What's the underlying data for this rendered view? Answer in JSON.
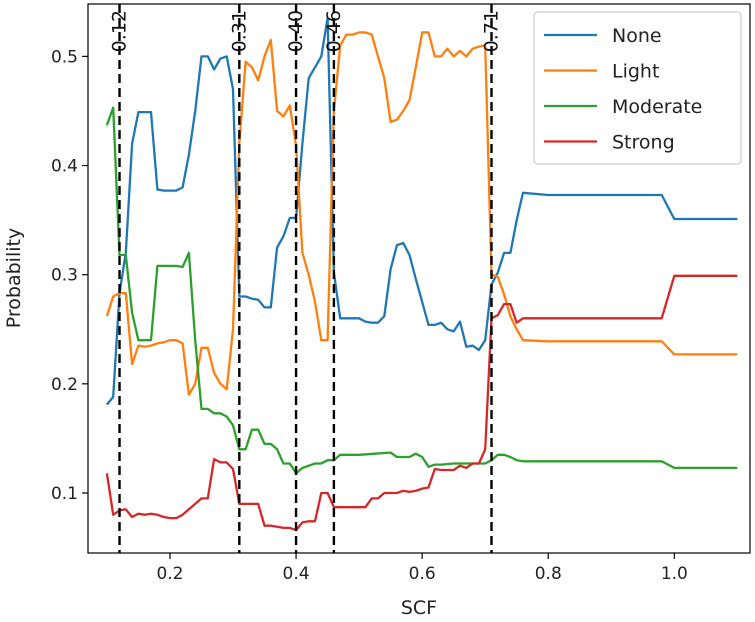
{
  "chart_data": {
    "type": "line",
    "title": "",
    "xlabel": "SCF",
    "ylabel": "Probability",
    "xlim": [
      0.07,
      1.12
    ],
    "ylim": [
      0.045,
      0.548
    ],
    "xticks": [
      0.2,
      0.4,
      0.6,
      0.8,
      1.0
    ],
    "xtick_labels": [
      "0.2",
      "0.4",
      "0.6",
      "0.8",
      "1.0"
    ],
    "yticks": [
      0.1,
      0.2,
      0.3,
      0.4,
      0.5
    ],
    "ytick_labels": [
      "0.1",
      "0.2",
      "0.3",
      "0.4",
      "0.5"
    ],
    "thresholds": [
      {
        "x": 0.12,
        "label": "0.12"
      },
      {
        "x": 0.31,
        "label": "0.31"
      },
      {
        "x": 0.4,
        "label": "0.40"
      },
      {
        "x": 0.46,
        "label": "0.46"
      },
      {
        "x": 0.71,
        "label": "0.71"
      }
    ],
    "legend_position": "top-right",
    "series": [
      {
        "name": "None",
        "color": "#1f77b4",
        "points": [
          [
            0.1,
            0.181
          ],
          [
            0.11,
            0.188
          ],
          [
            0.12,
            0.283
          ],
          [
            0.13,
            0.32
          ],
          [
            0.14,
            0.42
          ],
          [
            0.15,
            0.449
          ],
          [
            0.16,
            0.449
          ],
          [
            0.17,
            0.449
          ],
          [
            0.18,
            0.378
          ],
          [
            0.19,
            0.377
          ],
          [
            0.2,
            0.377
          ],
          [
            0.21,
            0.377
          ],
          [
            0.22,
            0.38
          ],
          [
            0.23,
            0.41
          ],
          [
            0.24,
            0.45
          ],
          [
            0.25,
            0.5
          ],
          [
            0.26,
            0.5
          ],
          [
            0.27,
            0.488
          ],
          [
            0.28,
            0.498
          ],
          [
            0.29,
            0.5
          ],
          [
            0.3,
            0.47
          ],
          [
            0.31,
            0.28
          ],
          [
            0.32,
            0.28
          ],
          [
            0.33,
            0.278
          ],
          [
            0.34,
            0.277
          ],
          [
            0.35,
            0.27
          ],
          [
            0.36,
            0.27
          ],
          [
            0.37,
            0.325
          ],
          [
            0.38,
            0.335
          ],
          [
            0.39,
            0.352
          ],
          [
            0.4,
            0.352
          ],
          [
            0.41,
            0.42
          ],
          [
            0.42,
            0.48
          ],
          [
            0.43,
            0.49
          ],
          [
            0.44,
            0.5
          ],
          [
            0.45,
            0.535
          ],
          [
            0.46,
            0.302
          ],
          [
            0.47,
            0.26
          ],
          [
            0.48,
            0.26
          ],
          [
            0.49,
            0.26
          ],
          [
            0.5,
            0.26
          ],
          [
            0.51,
            0.257
          ],
          [
            0.52,
            0.256
          ],
          [
            0.53,
            0.256
          ],
          [
            0.54,
            0.262
          ],
          [
            0.55,
            0.305
          ],
          [
            0.56,
            0.327
          ],
          [
            0.57,
            0.329
          ],
          [
            0.58,
            0.318
          ],
          [
            0.59,
            0.296
          ],
          [
            0.6,
            0.275
          ],
          [
            0.61,
            0.254
          ],
          [
            0.62,
            0.254
          ],
          [
            0.63,
            0.256
          ],
          [
            0.64,
            0.25
          ],
          [
            0.65,
            0.248
          ],
          [
            0.66,
            0.257
          ],
          [
            0.67,
            0.234
          ],
          [
            0.68,
            0.235
          ],
          [
            0.69,
            0.231
          ],
          [
            0.7,
            0.24
          ],
          [
            0.71,
            0.291
          ],
          [
            0.72,
            0.302
          ],
          [
            0.73,
            0.32
          ],
          [
            0.74,
            0.32
          ],
          [
            0.75,
            0.35
          ],
          [
            0.76,
            0.375
          ],
          [
            0.8,
            0.373
          ],
          [
            0.9,
            0.373
          ],
          [
            0.98,
            0.373
          ],
          [
            1.0,
            0.351
          ],
          [
            1.1,
            0.351
          ]
        ]
      },
      {
        "name": "Light",
        "color": "#ff7f0e",
        "points": [
          [
            0.1,
            0.262
          ],
          [
            0.11,
            0.28
          ],
          [
            0.12,
            0.283
          ],
          [
            0.13,
            0.283
          ],
          [
            0.14,
            0.218
          ],
          [
            0.15,
            0.235
          ],
          [
            0.16,
            0.234
          ],
          [
            0.17,
            0.235
          ],
          [
            0.18,
            0.237
          ],
          [
            0.19,
            0.238
          ],
          [
            0.2,
            0.24
          ],
          [
            0.21,
            0.24
          ],
          [
            0.22,
            0.237
          ],
          [
            0.23,
            0.19
          ],
          [
            0.24,
            0.2
          ],
          [
            0.25,
            0.233
          ],
          [
            0.26,
            0.233
          ],
          [
            0.27,
            0.21
          ],
          [
            0.28,
            0.2
          ],
          [
            0.29,
            0.195
          ],
          [
            0.3,
            0.25
          ],
          [
            0.31,
            0.42
          ],
          [
            0.32,
            0.495
          ],
          [
            0.33,
            0.49
          ],
          [
            0.34,
            0.478
          ],
          [
            0.35,
            0.5
          ],
          [
            0.36,
            0.515
          ],
          [
            0.37,
            0.45
          ],
          [
            0.38,
            0.445
          ],
          [
            0.39,
            0.455
          ],
          [
            0.4,
            0.418
          ],
          [
            0.41,
            0.32
          ],
          [
            0.42,
            0.3
          ],
          [
            0.43,
            0.275
          ],
          [
            0.44,
            0.24
          ],
          [
            0.45,
            0.24
          ],
          [
            0.46,
            0.45
          ],
          [
            0.47,
            0.51
          ],
          [
            0.48,
            0.52
          ],
          [
            0.49,
            0.52
          ],
          [
            0.5,
            0.522
          ],
          [
            0.51,
            0.522
          ],
          [
            0.52,
            0.52
          ],
          [
            0.53,
            0.5
          ],
          [
            0.54,
            0.48
          ],
          [
            0.55,
            0.44
          ],
          [
            0.56,
            0.442
          ],
          [
            0.57,
            0.45
          ],
          [
            0.58,
            0.46
          ],
          [
            0.59,
            0.49
          ],
          [
            0.6,
            0.522
          ],
          [
            0.61,
            0.522
          ],
          [
            0.62,
            0.5
          ],
          [
            0.63,
            0.5
          ],
          [
            0.64,
            0.507
          ],
          [
            0.65,
            0.5
          ],
          [
            0.66,
            0.505
          ],
          [
            0.67,
            0.5
          ],
          [
            0.68,
            0.507
          ],
          [
            0.69,
            0.509
          ],
          [
            0.7,
            0.51
          ],
          [
            0.71,
            0.3
          ],
          [
            0.72,
            0.298
          ],
          [
            0.73,
            0.282
          ],
          [
            0.74,
            0.262
          ],
          [
            0.75,
            0.25
          ],
          [
            0.76,
            0.24
          ],
          [
            0.8,
            0.239
          ],
          [
            0.9,
            0.239
          ],
          [
            0.98,
            0.239
          ],
          [
            1.0,
            0.227
          ],
          [
            1.1,
            0.227
          ]
        ]
      },
      {
        "name": "Moderate",
        "color": "#2ca02c",
        "points": [
          [
            0.1,
            0.437
          ],
          [
            0.11,
            0.453
          ],
          [
            0.12,
            0.318
          ],
          [
            0.13,
            0.318
          ],
          [
            0.14,
            0.265
          ],
          [
            0.15,
            0.24
          ],
          [
            0.16,
            0.24
          ],
          [
            0.17,
            0.24
          ],
          [
            0.18,
            0.308
          ],
          [
            0.19,
            0.308
          ],
          [
            0.2,
            0.308
          ],
          [
            0.21,
            0.308
          ],
          [
            0.22,
            0.307
          ],
          [
            0.23,
            0.32
          ],
          [
            0.24,
            0.24
          ],
          [
            0.25,
            0.177
          ],
          [
            0.26,
            0.177
          ],
          [
            0.27,
            0.173
          ],
          [
            0.28,
            0.173
          ],
          [
            0.29,
            0.17
          ],
          [
            0.3,
            0.162
          ],
          [
            0.31,
            0.14
          ],
          [
            0.32,
            0.14
          ],
          [
            0.33,
            0.158
          ],
          [
            0.34,
            0.158
          ],
          [
            0.35,
            0.145
          ],
          [
            0.36,
            0.145
          ],
          [
            0.37,
            0.14
          ],
          [
            0.38,
            0.127
          ],
          [
            0.39,
            0.127
          ],
          [
            0.4,
            0.118
          ],
          [
            0.41,
            0.123
          ],
          [
            0.42,
            0.125
          ],
          [
            0.43,
            0.127
          ],
          [
            0.44,
            0.127
          ],
          [
            0.45,
            0.13
          ],
          [
            0.46,
            0.13
          ],
          [
            0.47,
            0.135
          ],
          [
            0.5,
            0.135
          ],
          [
            0.55,
            0.137
          ],
          [
            0.56,
            0.133
          ],
          [
            0.57,
            0.133
          ],
          [
            0.58,
            0.133
          ],
          [
            0.59,
            0.136
          ],
          [
            0.6,
            0.133
          ],
          [
            0.61,
            0.124
          ],
          [
            0.62,
            0.126
          ],
          [
            0.63,
            0.126
          ],
          [
            0.65,
            0.127
          ],
          [
            0.7,
            0.127
          ],
          [
            0.71,
            0.13
          ],
          [
            0.72,
            0.135
          ],
          [
            0.73,
            0.135
          ],
          [
            0.74,
            0.133
          ],
          [
            0.75,
            0.13
          ],
          [
            0.76,
            0.129
          ],
          [
            0.8,
            0.129
          ],
          [
            0.9,
            0.129
          ],
          [
            0.98,
            0.129
          ],
          [
            1.0,
            0.123
          ],
          [
            1.1,
            0.123
          ]
        ]
      },
      {
        "name": "Strong",
        "color": "#d62728",
        "points": [
          [
            0.1,
            0.118
          ],
          [
            0.11,
            0.08
          ],
          [
            0.12,
            0.084
          ],
          [
            0.13,
            0.085
          ],
          [
            0.14,
            0.078
          ],
          [
            0.15,
            0.081
          ],
          [
            0.16,
            0.08
          ],
          [
            0.17,
            0.081
          ],
          [
            0.18,
            0.08
          ],
          [
            0.19,
            0.078
          ],
          [
            0.2,
            0.077
          ],
          [
            0.21,
            0.077
          ],
          [
            0.22,
            0.08
          ],
          [
            0.23,
            0.085
          ],
          [
            0.24,
            0.09
          ],
          [
            0.25,
            0.095
          ],
          [
            0.26,
            0.095
          ],
          [
            0.27,
            0.131
          ],
          [
            0.28,
            0.128
          ],
          [
            0.29,
            0.128
          ],
          [
            0.3,
            0.122
          ],
          [
            0.31,
            0.09
          ],
          [
            0.32,
            0.09
          ],
          [
            0.33,
            0.09
          ],
          [
            0.34,
            0.09
          ],
          [
            0.35,
            0.07
          ],
          [
            0.36,
            0.07
          ],
          [
            0.37,
            0.069
          ],
          [
            0.38,
            0.068
          ],
          [
            0.39,
            0.068
          ],
          [
            0.4,
            0.066
          ],
          [
            0.41,
            0.073
          ],
          [
            0.42,
            0.074
          ],
          [
            0.43,
            0.074
          ],
          [
            0.44,
            0.1
          ],
          [
            0.45,
            0.1
          ],
          [
            0.46,
            0.087
          ],
          [
            0.47,
            0.087
          ],
          [
            0.48,
            0.087
          ],
          [
            0.49,
            0.087
          ],
          [
            0.5,
            0.087
          ],
          [
            0.51,
            0.087
          ],
          [
            0.52,
            0.095
          ],
          [
            0.53,
            0.095
          ],
          [
            0.54,
            0.1
          ],
          [
            0.55,
            0.1
          ],
          [
            0.56,
            0.1
          ],
          [
            0.57,
            0.102
          ],
          [
            0.58,
            0.101
          ],
          [
            0.59,
            0.102
          ],
          [
            0.6,
            0.104
          ],
          [
            0.61,
            0.105
          ],
          [
            0.62,
            0.122
          ],
          [
            0.63,
            0.121
          ],
          [
            0.64,
            0.121
          ],
          [
            0.65,
            0.121
          ],
          [
            0.66,
            0.125
          ],
          [
            0.67,
            0.123
          ],
          [
            0.68,
            0.127
          ],
          [
            0.69,
            0.127
          ],
          [
            0.7,
            0.14
          ],
          [
            0.71,
            0.26
          ],
          [
            0.72,
            0.263
          ],
          [
            0.73,
            0.273
          ],
          [
            0.74,
            0.273
          ],
          [
            0.75,
            0.256
          ],
          [
            0.76,
            0.26
          ],
          [
            0.8,
            0.26
          ],
          [
            0.9,
            0.26
          ],
          [
            0.98,
            0.26
          ],
          [
            1.0,
            0.299
          ],
          [
            1.1,
            0.299
          ]
        ]
      }
    ]
  }
}
